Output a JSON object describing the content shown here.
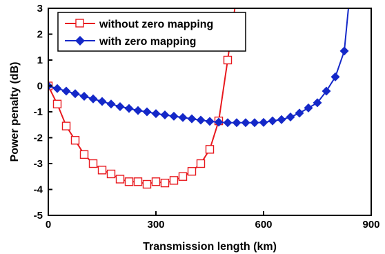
{
  "chart_data": {
    "type": "line",
    "title": "",
    "xlabel": "Transmission length (km)",
    "ylabel": "Power penalty (dB)",
    "xlim": [
      0,
      900
    ],
    "ylim": [
      -5,
      3
    ],
    "x_ticks": [
      "0",
      "300",
      "600",
      "900"
    ],
    "y_ticks": [
      "-5",
      "-4",
      "-3",
      "-2",
      "-1",
      "0",
      "1",
      "2",
      "3"
    ],
    "grid": false,
    "legend_position": "top-left",
    "series": [
      {
        "name": "without zero mapping",
        "color": "#e8191e",
        "marker": "open-square",
        "x": [
          0,
          25,
          50,
          75,
          100,
          125,
          150,
          175,
          200,
          225,
          250,
          275,
          300,
          325,
          350,
          375,
          400,
          425,
          450,
          475,
          500,
          525
        ],
        "y": [
          0,
          -0.7,
          -1.55,
          -2.1,
          -2.65,
          -3.0,
          -3.25,
          -3.4,
          -3.6,
          -3.7,
          -3.7,
          -3.8,
          -3.7,
          -3.75,
          -3.65,
          -3.5,
          -3.3,
          -3.0,
          -2.45,
          -1.35,
          1.0,
          3.5
        ]
      },
      {
        "name": "with zero mapping",
        "color": "#1428c8",
        "marker": "filled-diamond",
        "x": [
          0,
          25,
          50,
          75,
          100,
          125,
          150,
          175,
          200,
          225,
          250,
          275,
          300,
          325,
          350,
          375,
          400,
          425,
          450,
          475,
          500,
          525,
          550,
          575,
          600,
          625,
          650,
          675,
          700,
          725,
          750,
          775,
          800,
          825,
          840
        ],
        "y": [
          0,
          -0.1,
          -0.2,
          -0.3,
          -0.4,
          -0.5,
          -0.6,
          -0.7,
          -0.8,
          -0.87,
          -0.95,
          -1.0,
          -1.07,
          -1.12,
          -1.17,
          -1.22,
          -1.27,
          -1.32,
          -1.37,
          -1.4,
          -1.42,
          -1.42,
          -1.42,
          -1.42,
          -1.41,
          -1.35,
          -1.3,
          -1.2,
          -1.05,
          -0.85,
          -0.65,
          -0.2,
          0.35,
          1.35,
          3.5
        ]
      }
    ]
  }
}
